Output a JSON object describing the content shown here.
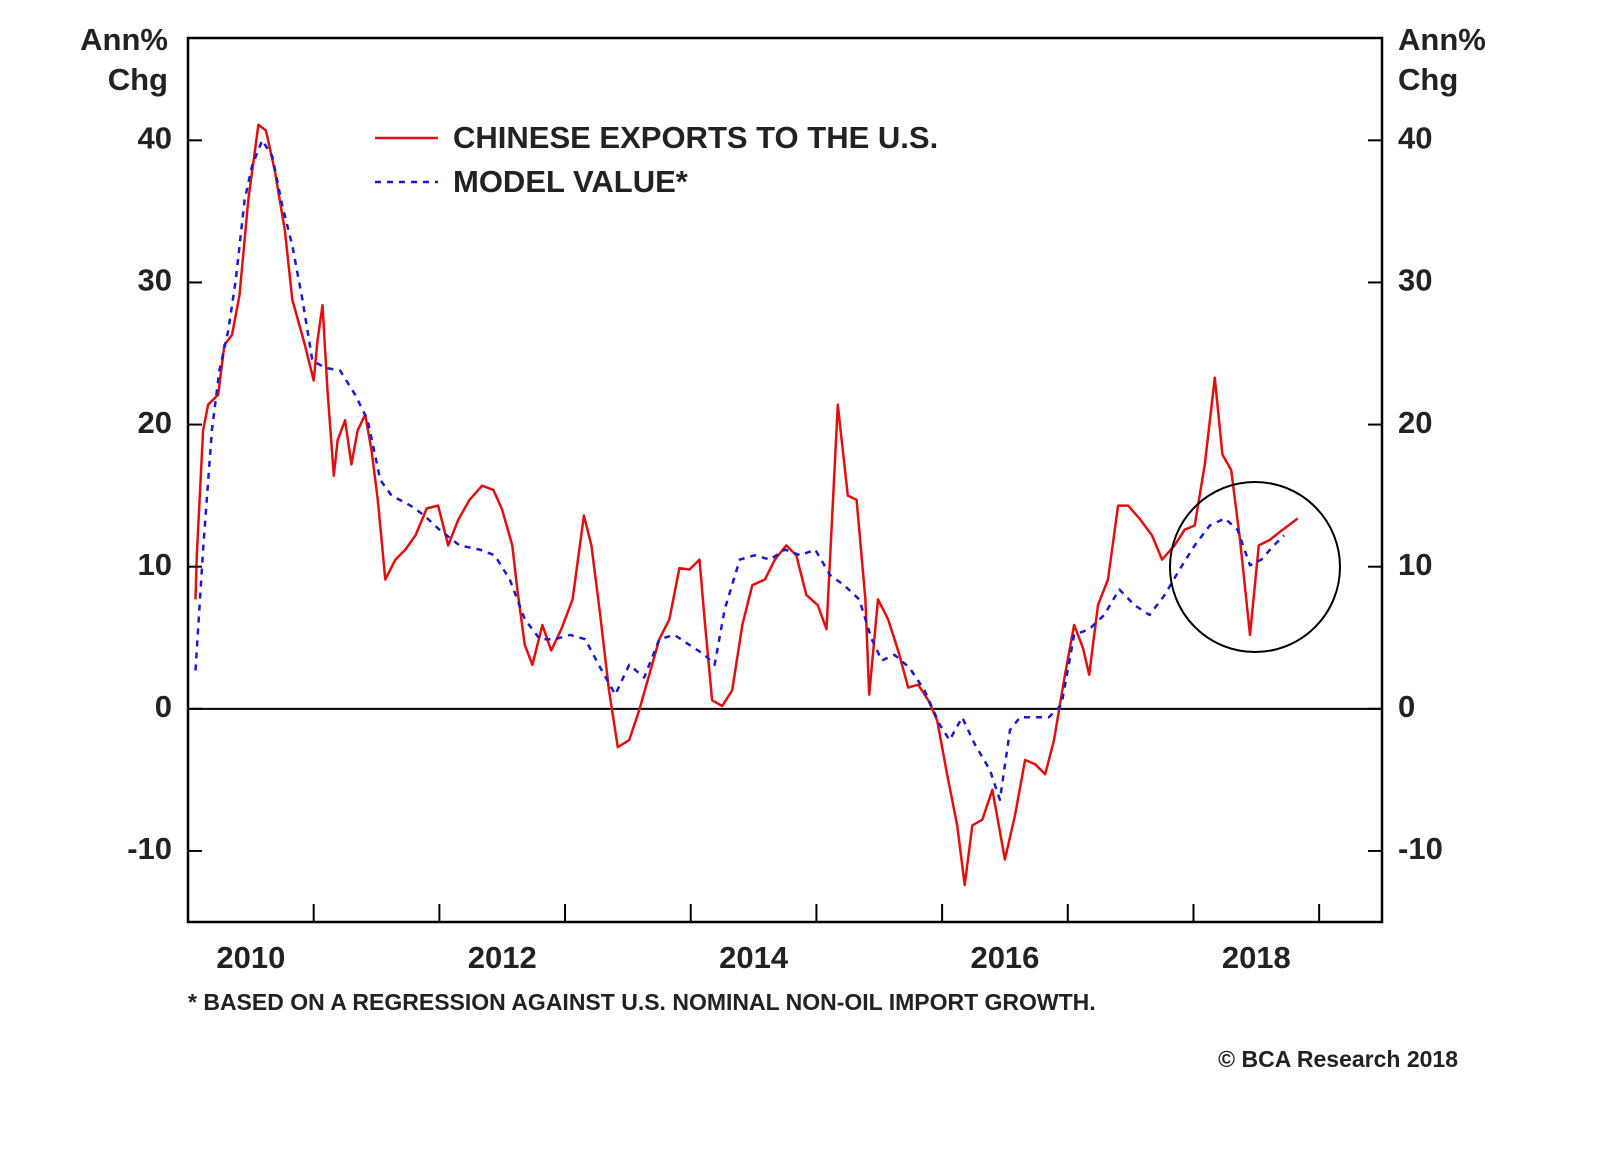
{
  "chart_data": {
    "type": "line",
    "ylabel": [
      "Ann%",
      "Chg"
    ],
    "y2label": [
      "Ann%",
      "Chg"
    ],
    "footnote": "* BASED ON A REGRESSION AGAINST U.S. NOMINAL NON-OIL IMPORT GROWTH.",
    "source": "© BCA Research 2018",
    "legend": "upper left",
    "xlim": [
      2010,
      2019.5
    ],
    "xticks": [
      2011,
      2012,
      2013,
      2014,
      2015,
      2016,
      2017,
      2018,
      2019
    ],
    "xlabels": [
      {
        "value": 2010.5,
        "label": "2010"
      },
      {
        "value": 2012.5,
        "label": "2012"
      },
      {
        "value": 2014.5,
        "label": "2014"
      },
      {
        "value": 2016.5,
        "label": "2016"
      },
      {
        "value": 2018.5,
        "label": "2018"
      }
    ],
    "ylim": [
      -15,
      47.2
    ],
    "yticks": [
      -10,
      0,
      10,
      20,
      30,
      40
    ],
    "y2lim": [
      -15,
      47.2
    ],
    "y2ticks": [
      -10,
      0,
      10,
      20,
      30,
      40
    ],
    "series": [
      {
        "name": "CHINESE EXPORTS TO THE U.S.",
        "color": "#e01010",
        "style": "solid",
        "x": [
          2010.06,
          2010.07,
          2010.12,
          2010.16,
          2010.24,
          2010.29,
          2010.35,
          2010.41,
          2010.48,
          2010.56,
          2010.62,
          2010.69,
          2010.77,
          2010.83,
          2010.93,
          2011.0,
          2011.03,
          2011.07,
          2011.11,
          2011.16,
          2011.19,
          2011.25,
          2011.3,
          2011.35,
          2011.41,
          2011.46,
          2011.51,
          2011.57,
          2011.65,
          2011.73,
          2011.81,
          2011.9,
          2011.99,
          2012.07,
          2012.15,
          2012.24,
          2012.34,
          2012.43,
          2012.5,
          2012.58,
          2012.62,
          2012.68,
          2012.74,
          2012.82,
          2012.89,
          2012.97,
          2013.06,
          2013.15,
          2013.21,
          2013.28,
          2013.35,
          2013.42,
          2013.51,
          2013.59,
          2013.67,
          2013.75,
          2013.83,
          2013.91,
          2013.99,
          2014.07,
          2014.11,
          2014.17,
          2014.25,
          2014.33,
          2014.41,
          2014.49,
          2014.59,
          2014.67,
          2014.76,
          2014.84,
          2014.92,
          2015.01,
          2015.08,
          2015.17,
          2015.25,
          2015.32,
          2015.39,
          2015.42,
          2015.49,
          2015.57,
          2015.65,
          2015.73,
          2015.81,
          2015.89,
          2015.96,
          2016.04,
          2016.12,
          2016.18,
          2016.24,
          2016.32,
          2016.4,
          2016.5,
          2016.58,
          2016.66,
          2016.74,
          2016.82,
          2016.89,
          2016.97,
          2017.05,
          2017.12,
          2017.17,
          2017.24,
          2017.32,
          2017.4,
          2017.48,
          2017.57,
          2017.67,
          2017.75,
          2017.85,
          2017.93,
          2018.01,
          2018.09,
          2018.17,
          2018.23,
          2018.3,
          2018.37,
          2018.45,
          2018.52,
          2018.61,
          2018.71,
          2018.83
        ],
        "values": [
          7.7,
          10.8,
          19.6,
          21.4,
          22.1,
          25.6,
          26.3,
          29.1,
          35.8,
          41.1,
          40.7,
          37.9,
          33.7,
          28.8,
          25.6,
          23.1,
          25.9,
          28.4,
          22.4,
          16.4,
          18.9,
          20.3,
          17.2,
          19.6,
          20.7,
          18.2,
          14.7,
          9.1,
          10.5,
          11.2,
          12.2,
          14.1,
          14.3,
          11.5,
          13.3,
          14.7,
          15.7,
          15.4,
          14.0,
          11.5,
          8.4,
          4.5,
          3.1,
          5.9,
          4.1,
          5.6,
          7.7,
          13.6,
          11.5,
          6.6,
          1.3,
          -2.7,
          -2.2,
          -0.1,
          2.4,
          4.9,
          6.3,
          9.9,
          9.8,
          10.5,
          6.3,
          0.6,
          0.2,
          1.3,
          5.9,
          8.7,
          9.1,
          10.5,
          11.5,
          10.8,
          8.0,
          7.3,
          5.6,
          21.4,
          15.0,
          14.7,
          7.7,
          1.0,
          7.7,
          6.3,
          4.1,
          1.5,
          1.7,
          0.6,
          -0.8,
          -4.6,
          -8.2,
          -12.4,
          -8.2,
          -7.8,
          -5.7,
          -10.6,
          -7.5,
          -3.6,
          -3.9,
          -4.6,
          -2.2,
          2.0,
          5.9,
          4.3,
          2.4,
          7.3,
          9.1,
          14.3,
          14.3,
          13.4,
          12.2,
          10.5,
          11.5,
          12.6,
          12.9,
          17.2,
          23.3,
          17.9,
          16.8,
          11.9,
          5.2,
          11.5,
          11.9,
          12.6,
          13.4
        ]
      },
      {
        "name": "MODEL VALUE*",
        "color": "#1a1ad0",
        "style": "dotted",
        "x": [
          2010.06,
          2010.12,
          2010.19,
          2010.25,
          2010.32,
          2010.38,
          2010.45,
          2010.51,
          2010.59,
          2010.67,
          2010.75,
          2010.83,
          2010.91,
          2010.99,
          2011.09,
          2011.21,
          2011.33,
          2011.43,
          2011.53,
          2011.62,
          2011.77,
          2011.88,
          2012.0,
          2012.16,
          2012.32,
          2012.44,
          2012.56,
          2012.68,
          2012.8,
          2012.92,
          2013.04,
          2013.16,
          2013.28,
          2013.4,
          2013.51,
          2013.63,
          2013.75,
          2013.87,
          2013.99,
          2014.11,
          2014.19,
          2014.27,
          2014.39,
          2014.51,
          2014.63,
          2014.75,
          2014.87,
          2014.99,
          2015.11,
          2015.22,
          2015.34,
          2015.44,
          2015.52,
          2015.62,
          2015.74,
          2015.86,
          2015.98,
          2016.06,
          2016.16,
          2016.26,
          2016.38,
          2016.46,
          2016.54,
          2016.62,
          2016.74,
          2016.85,
          2016.95,
          2017.05,
          2017.17,
          2017.29,
          2017.41,
          2017.53,
          2017.65,
          2017.77,
          2017.89,
          2018.01,
          2018.13,
          2018.25,
          2018.35,
          2018.45,
          2018.54,
          2018.64,
          2018.72
        ],
        "values": [
          2.7,
          11.2,
          19.6,
          23.8,
          26.6,
          30.2,
          35.8,
          38.2,
          40.0,
          38.9,
          35.4,
          32.6,
          28.8,
          24.5,
          24.0,
          23.8,
          22.1,
          20.3,
          16.1,
          15.0,
          14.3,
          13.6,
          12.6,
          11.5,
          11.2,
          10.8,
          9.1,
          6.3,
          4.9,
          4.9,
          5.2,
          4.9,
          2.9,
          1.0,
          3.1,
          2.2,
          4.9,
          5.2,
          4.5,
          3.8,
          3.1,
          7.0,
          10.5,
          10.8,
          10.5,
          11.2,
          10.8,
          11.2,
          9.4,
          8.7,
          7.7,
          4.9,
          3.4,
          3.8,
          2.9,
          1.3,
          -1.1,
          -2.2,
          -0.6,
          -2.5,
          -4.3,
          -6.4,
          -1.5,
          -0.6,
          -0.6,
          -0.6,
          0.3,
          5.2,
          5.6,
          6.6,
          8.4,
          7.3,
          6.6,
          8.0,
          9.8,
          11.5,
          12.9,
          13.4,
          12.6,
          10.1,
          10.5,
          11.5,
          12.2
        ]
      }
    ]
  }
}
